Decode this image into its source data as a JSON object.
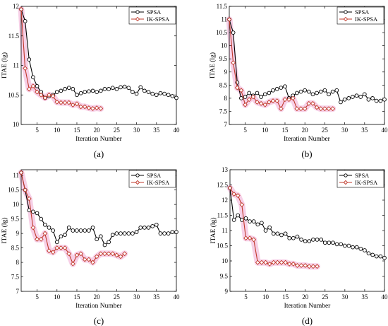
{
  "colors": {
    "spsa": "#000000",
    "ik_spsa": "#c0392b",
    "highlight": "#f6c8e3"
  },
  "chart_data": [
    {
      "type": "line",
      "panel_label": "(a)",
      "xlabel": "Iteration Number",
      "ylabel": "ITAE (lg)",
      "xlim": [
        1,
        40
      ],
      "ylim": [
        10,
        12
      ],
      "xticks": [
        5,
        10,
        15,
        20,
        25,
        30,
        35,
        40
      ],
      "xtick_labels": [
        "5",
        "10",
        "15",
        "20",
        "25",
        "30",
        "35",
        "40"
      ],
      "yticks": [
        10,
        10.5,
        11,
        11.5,
        12
      ],
      "ytick_labels": [
        "10",
        "10.5",
        "11",
        "11.5",
        "12"
      ],
      "legend_position": "top-right",
      "series": [
        {
          "name": "SPSA",
          "marker": "circle",
          "x": [
            1,
            2,
            3,
            4,
            5,
            6,
            7,
            8,
            9,
            10,
            11,
            12,
            13,
            14,
            15,
            16,
            17,
            18,
            19,
            20,
            21,
            22,
            23,
            24,
            25,
            26,
            27,
            28,
            29,
            30,
            31,
            32,
            33,
            34,
            35,
            36,
            37,
            38,
            39,
            40
          ],
          "y": [
            11.95,
            11.75,
            11.1,
            10.8,
            10.65,
            10.55,
            10.45,
            10.48,
            10.5,
            10.55,
            10.57,
            10.6,
            10.62,
            10.6,
            10.5,
            10.53,
            10.55,
            10.56,
            10.57,
            10.55,
            10.57,
            10.6,
            10.6,
            10.62,
            10.6,
            10.63,
            10.64,
            10.62,
            10.55,
            10.52,
            10.63,
            10.57,
            10.55,
            10.52,
            10.5,
            10.53,
            10.52,
            10.5,
            10.48,
            10.45
          ]
        },
        {
          "name": "IK-SPSA",
          "marker": "diamond",
          "x": [
            1,
            2,
            3,
            4,
            5,
            6,
            7,
            8,
            9,
            10,
            11,
            12,
            13,
            14,
            15,
            16,
            17,
            18,
            19,
            20,
            21
          ],
          "y": [
            11.95,
            10.95,
            10.6,
            10.65,
            10.55,
            10.5,
            10.45,
            10.5,
            10.48,
            10.38,
            10.37,
            10.37,
            10.37,
            10.33,
            10.35,
            10.3,
            10.3,
            10.28,
            10.27,
            10.28,
            10.27
          ]
        }
      ]
    },
    {
      "type": "line",
      "panel_label": "(b)",
      "xlabel": "Iteration Number",
      "ylabel": "ITAE (lg)",
      "xlim": [
        1,
        40
      ],
      "ylim": [
        7,
        11.5
      ],
      "xticks": [
        5,
        10,
        15,
        20,
        25,
        30,
        35,
        40
      ],
      "xtick_labels": [
        "5",
        "10",
        "15",
        "20",
        "25",
        "30",
        "35",
        "40"
      ],
      "yticks": [
        7,
        7.5,
        8,
        8.5,
        9,
        9.5,
        10,
        10.5,
        11,
        11.5
      ],
      "ytick_labels": [
        "7",
        "7.5",
        "8",
        "8.5",
        "9",
        "9.5",
        "10",
        "10.5",
        "11",
        "11.5"
      ],
      "legend_position": "top-right",
      "series": [
        {
          "name": "SPSA",
          "marker": "circle",
          "x": [
            1,
            2,
            3,
            4,
            5,
            6,
            7,
            8,
            9,
            10,
            11,
            12,
            13,
            14,
            15,
            16,
            17,
            18,
            19,
            20,
            21,
            22,
            23,
            24,
            25,
            26,
            27,
            28,
            29,
            30,
            31,
            32,
            33,
            34,
            35,
            36,
            37,
            38,
            39,
            40
          ],
          "y": [
            11.0,
            10.5,
            8.6,
            8.0,
            8.05,
            8.2,
            8.1,
            8.2,
            8.05,
            8.15,
            8.2,
            8.3,
            8.35,
            8.4,
            8.45,
            8.0,
            8.1,
            8.2,
            8.25,
            8.3,
            8.25,
            8.15,
            8.2,
            8.25,
            8.3,
            8.15,
            8.25,
            8.3,
            7.85,
            7.95,
            8.0,
            8.05,
            8.1,
            8.05,
            8.15,
            7.95,
            8.0,
            7.9,
            7.9,
            7.95
          ]
        },
        {
          "name": "IK-SPSA",
          "marker": "diamond",
          "x": [
            1,
            2,
            3,
            4,
            5,
            6,
            7,
            8,
            9,
            10,
            11,
            12,
            13,
            14,
            15,
            16,
            17,
            18,
            19,
            20,
            21,
            22,
            23,
            24,
            25,
            26,
            27
          ],
          "y": [
            11.0,
            9.35,
            8.4,
            8.3,
            7.75,
            7.95,
            8.05,
            7.85,
            7.8,
            7.75,
            7.85,
            7.9,
            7.9,
            7.6,
            7.95,
            7.95,
            8.0,
            7.6,
            7.6,
            7.6,
            7.8,
            7.8,
            7.65,
            7.6,
            7.6,
            7.6,
            7.6
          ]
        }
      ]
    },
    {
      "type": "line",
      "panel_label": "(c)",
      "xlabel": "Iteration Number",
      "ylabel": "ITAE (lg)",
      "xlim": [
        1,
        40
      ],
      "ylim": [
        7,
        11.2
      ],
      "xticks": [
        5,
        10,
        15,
        20,
        25,
        30,
        35,
        40
      ],
      "xtick_labels": [
        "5",
        "10",
        "15",
        "20",
        "25",
        "30",
        "35",
        "40"
      ],
      "yticks": [
        7,
        7.5,
        8,
        8.5,
        9,
        9.5,
        10,
        10.5,
        11
      ],
      "ytick_labels": [
        "7",
        "7.5",
        "8",
        "8.5",
        "9",
        "9.5",
        "10",
        "10.5",
        "11"
      ],
      "legend_position": "top-right",
      "series": [
        {
          "name": "SPSA",
          "marker": "circle",
          "x": [
            1,
            2,
            3,
            4,
            5,
            6,
            7,
            8,
            9,
            10,
            11,
            12,
            13,
            14,
            15,
            16,
            17,
            18,
            19,
            20,
            21,
            22,
            23,
            24,
            25,
            26,
            27,
            28,
            29,
            30,
            31,
            32,
            33,
            34,
            35,
            36,
            37,
            38,
            39,
            40
          ],
          "y": [
            11.1,
            10.5,
            9.8,
            9.75,
            9.7,
            9.5,
            9.3,
            9.2,
            9.1,
            8.7,
            8.9,
            8.95,
            9.2,
            9.1,
            9.1,
            9.1,
            9.1,
            9.1,
            9.2,
            8.8,
            8.9,
            8.6,
            8.7,
            8.95,
            9.0,
            9.0,
            9.0,
            9.0,
            9.0,
            9.05,
            9.2,
            9.2,
            9.2,
            9.25,
            9.3,
            9.0,
            9.0,
            9.0,
            9.05,
            9.05
          ]
        },
        {
          "name": "IK-SPSA",
          "marker": "diamond",
          "x": [
            1,
            2,
            3,
            4,
            5,
            6,
            7,
            8,
            9,
            10,
            11,
            12,
            13,
            14,
            15,
            16,
            17,
            18,
            19,
            20,
            21,
            22,
            23,
            24,
            25,
            26,
            27
          ],
          "y": [
            11.1,
            10.5,
            10.2,
            9.2,
            8.8,
            8.8,
            9.0,
            8.4,
            8.35,
            8.5,
            8.5,
            8.5,
            8.3,
            7.95,
            8.25,
            8.3,
            8.1,
            8.1,
            8.0,
            8.2,
            8.3,
            8.3,
            8.3,
            8.3,
            8.25,
            8.2,
            8.3
          ]
        }
      ]
    },
    {
      "type": "line",
      "panel_label": "(d)",
      "xlabel": "Iteration Number",
      "ylabel": "ITAE (lg)",
      "xlim": [
        1,
        40
      ],
      "ylim": [
        9,
        13
      ],
      "xticks": [
        5,
        10,
        15,
        20,
        25,
        30,
        35,
        40
      ],
      "xtick_labels": [
        "5",
        "10",
        "15",
        "20",
        "25",
        "30",
        "35",
        "40"
      ],
      "yticks": [
        9,
        9.5,
        10,
        10.5,
        11,
        11.5,
        12,
        12.5,
        13
      ],
      "ytick_labels": [
        "9",
        "9.5",
        "10",
        "10.5",
        "11",
        "11.5",
        "12",
        "12.5",
        "13"
      ],
      "legend_position": "top-right",
      "series": [
        {
          "name": "SPSA",
          "marker": "circle",
          "x": [
            1,
            2,
            3,
            4,
            5,
            6,
            7,
            8,
            9,
            10,
            11,
            12,
            13,
            14,
            15,
            16,
            17,
            18,
            19,
            20,
            21,
            22,
            23,
            24,
            25,
            26,
            27,
            28,
            29,
            30,
            31,
            32,
            33,
            34,
            35,
            36,
            37,
            38,
            39,
            40
          ],
          "y": [
            12.4,
            11.35,
            11.5,
            11.35,
            11.4,
            11.3,
            11.3,
            11.2,
            11.25,
            11.0,
            11.1,
            10.9,
            10.9,
            10.85,
            10.9,
            10.75,
            10.75,
            10.8,
            10.7,
            10.65,
            10.65,
            10.7,
            10.7,
            10.7,
            10.6,
            10.6,
            10.6,
            10.55,
            10.55,
            10.5,
            10.5,
            10.45,
            10.45,
            10.4,
            10.35,
            10.25,
            10.2,
            10.15,
            10.15,
            10.1
          ]
        },
        {
          "name": "IK-SPSA",
          "marker": "diamond",
          "x": [
            1,
            2,
            3,
            4,
            5,
            6,
            7,
            8,
            9,
            10,
            11,
            12,
            13,
            14,
            15,
            16,
            17,
            18,
            19,
            20,
            21,
            22,
            23
          ],
          "y": [
            12.4,
            12.2,
            12.15,
            11.85,
            10.75,
            10.75,
            10.7,
            9.95,
            9.95,
            9.95,
            9.9,
            9.95,
            9.95,
            9.95,
            9.95,
            9.9,
            9.9,
            9.85,
            9.85,
            9.85,
            9.82,
            9.82,
            9.82
          ]
        }
      ]
    }
  ]
}
